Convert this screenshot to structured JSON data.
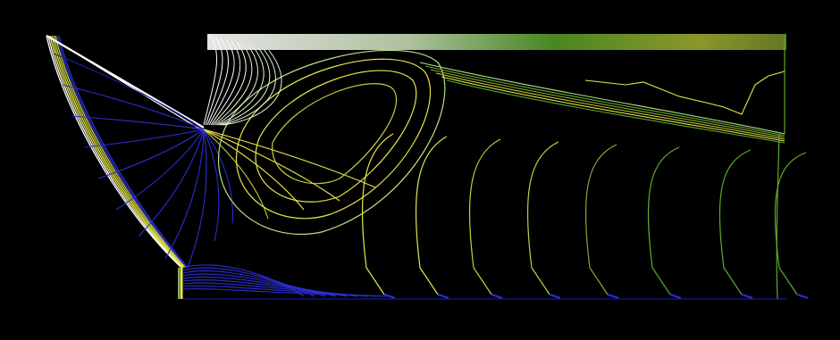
{
  "figure": {
    "background": "#000000",
    "palette": {
      "white": "#ffffff",
      "pale": "#e6f5d8",
      "light_green": "#b8e08a",
      "green": "#5cab2a",
      "olive": "#8ca52d",
      "yellow_green": "#c4cf3a",
      "yellow": "#e8e64a",
      "blue": "#2b2ed4",
      "deep_blue": "#1a1fb0"
    }
  }
}
